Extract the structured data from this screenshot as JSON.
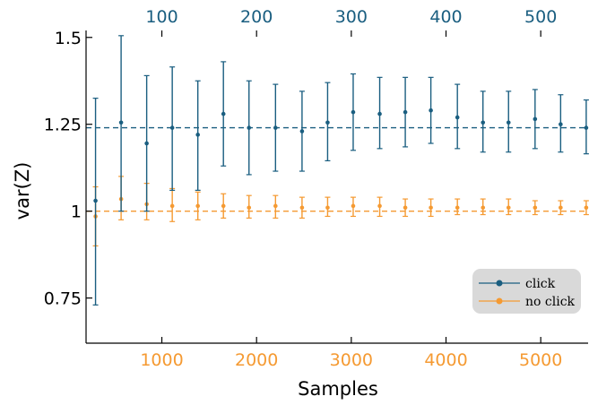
{
  "chart_data": {
    "type": "scatter",
    "xlabel": "Samples",
    "ylabel": "var(Z)",
    "xlim": [
      200,
      5500
    ],
    "ylim": [
      0.62,
      1.52
    ],
    "bottom_xticks": [
      "1000",
      "2000",
      "3000",
      "4000",
      "5000"
    ],
    "bottom_xtick_values": [
      1000,
      2000,
      3000,
      4000,
      5000
    ],
    "top_xticks": [
      "100",
      "200",
      "300",
      "400",
      "500"
    ],
    "top_xtick_values": [
      1000,
      2000,
      3000,
      4000,
      5000
    ],
    "yticks": [
      "0.75",
      "1",
      "1.25",
      "1.5"
    ],
    "ytick_values": [
      0.75,
      1.0,
      1.25,
      1.5
    ],
    "grid": false,
    "legend_position": "bottom-right",
    "colors": {
      "click": "#1a5e80",
      "no_click": "#f59a32",
      "legend_bg": "#d9d9d9"
    },
    "x": [
      300,
      570,
      840,
      1110,
      1380,
      1650,
      1920,
      2200,
      2480,
      2750,
      3020,
      3300,
      3570,
      3840,
      4120,
      4390,
      4660,
      4940,
      5210,
      5480
    ],
    "series": [
      {
        "name": "click",
        "reference_line": 1.24,
        "values": [
          1.03,
          1.255,
          1.195,
          1.24,
          1.22,
          1.28,
          1.24,
          1.24,
          1.23,
          1.255,
          1.285,
          1.28,
          1.285,
          1.29,
          1.27,
          1.255,
          1.255,
          1.265,
          1.25,
          1.24
        ],
        "err_low": [
          0.73,
          1.0,
          1.0,
          1.06,
          1.06,
          1.13,
          1.105,
          1.115,
          1.115,
          1.145,
          1.175,
          1.18,
          1.185,
          1.195,
          1.18,
          1.17,
          1.17,
          1.18,
          1.17,
          1.165
        ],
        "err_high": [
          1.325,
          1.505,
          1.39,
          1.415,
          1.375,
          1.43,
          1.375,
          1.365,
          1.345,
          1.37,
          1.395,
          1.385,
          1.385,
          1.385,
          1.365,
          1.345,
          1.345,
          1.35,
          1.335,
          1.32
        ]
      },
      {
        "name": "no click",
        "reference_line": 1.0,
        "values": [
          0.985,
          1.035,
          1.02,
          1.015,
          1.015,
          1.015,
          1.01,
          1.015,
          1.01,
          1.01,
          1.015,
          1.015,
          1.01,
          1.01,
          1.01,
          1.01,
          1.01,
          1.01,
          1.01,
          1.01
        ],
        "err_low": [
          0.9,
          0.975,
          0.975,
          0.97,
          0.975,
          0.98,
          0.98,
          0.98,
          0.98,
          0.985,
          0.985,
          0.985,
          0.985,
          0.985,
          0.99,
          0.99,
          0.99,
          0.99,
          0.99,
          0.99
        ],
        "err_high": [
          1.07,
          1.1,
          1.08,
          1.065,
          1.055,
          1.05,
          1.045,
          1.045,
          1.04,
          1.04,
          1.04,
          1.04,
          1.035,
          1.035,
          1.035,
          1.035,
          1.035,
          1.03,
          1.03,
          1.03
        ]
      }
    ]
  }
}
